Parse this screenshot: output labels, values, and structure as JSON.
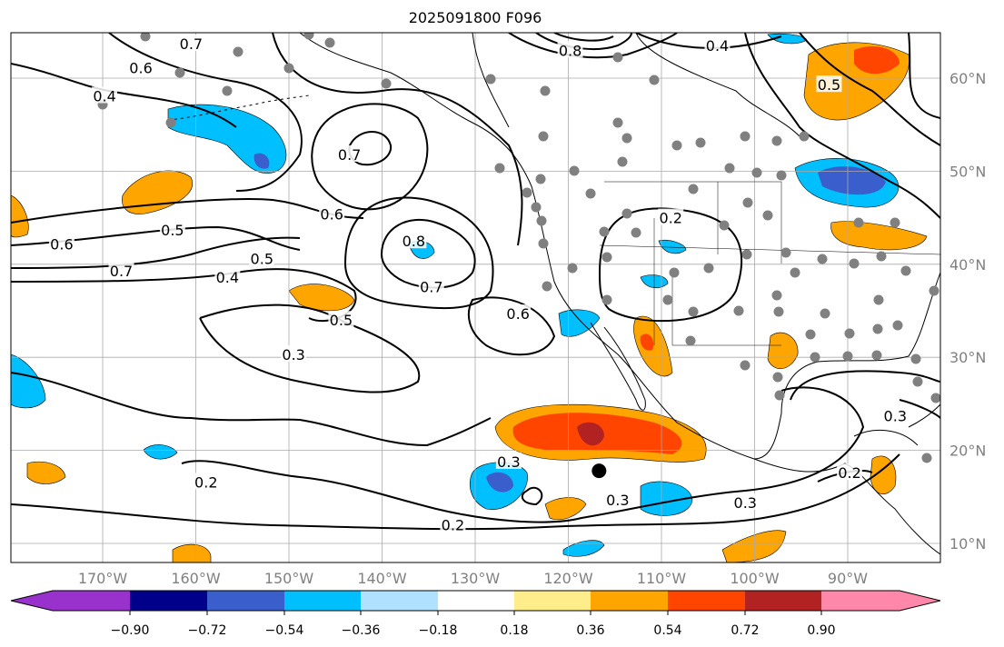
{
  "title": "2025091800 F096",
  "chart_data": {
    "type": "contour-map",
    "title": "2025091800 F096",
    "lon_range": [
      -180,
      -80
    ],
    "lat_range": [
      8,
      65
    ],
    "lon_ticks": [
      {
        "v": -170,
        "label": "170°W"
      },
      {
        "v": -160,
        "label": "160°W"
      },
      {
        "v": -150,
        "label": "150°W"
      },
      {
        "v": -140,
        "label": "140°W"
      },
      {
        "v": -130,
        "label": "130°W"
      },
      {
        "v": -120,
        "label": "120°W"
      },
      {
        "v": -110,
        "label": "110°W"
      },
      {
        "v": -100,
        "label": "100°W"
      },
      {
        "v": -90,
        "label": "90°W"
      }
    ],
    "lat_ticks": [
      {
        "v": 60,
        "label": "60°N"
      },
      {
        "v": 50,
        "label": "50°N"
      },
      {
        "v": 40,
        "label": "40°N"
      },
      {
        "v": 30,
        "label": "30°N"
      },
      {
        "v": 20,
        "label": "20°N"
      },
      {
        "v": 10,
        "label": "10°N"
      }
    ],
    "contour_labels": [
      {
        "text": "0.7",
        "lon": -160.5,
        "lat": 63.7
      },
      {
        "text": "0.6",
        "lon": -165.9,
        "lat": 61.1
      },
      {
        "text": "0.4",
        "lon": -169.8,
        "lat": 58.1
      },
      {
        "text": "0.7",
        "lon": -143.5,
        "lat": 51.8
      },
      {
        "text": "0.6",
        "lon": -145.4,
        "lat": 45.4
      },
      {
        "text": "0.8",
        "lon": -136.6,
        "lat": 42.5
      },
      {
        "text": "0.7",
        "lon": -134.7,
        "lat": 37.6
      },
      {
        "text": "0.5",
        "lon": -162.5,
        "lat": 43.7
      },
      {
        "text": "0.6",
        "lon": -174.4,
        "lat": 42.2
      },
      {
        "text": "0.7",
        "lon": -168.0,
        "lat": 39.3
      },
      {
        "text": "0.4",
        "lon": -156.6,
        "lat": 38.6
      },
      {
        "text": "0.5",
        "lon": -152.9,
        "lat": 40.6
      },
      {
        "text": "0.5",
        "lon": -144.4,
        "lat": 34.0
      },
      {
        "text": "0.3",
        "lon": -149.5,
        "lat": 30.3
      },
      {
        "text": "0.6",
        "lon": -125.4,
        "lat": 34.7
      },
      {
        "text": "0.2",
        "lon": -158.9,
        "lat": 16.6
      },
      {
        "text": "0.2",
        "lon": -132.4,
        "lat": 12.0
      },
      {
        "text": "0.3",
        "lon": -126.4,
        "lat": 18.8
      },
      {
        "text": "0.3",
        "lon": -114.7,
        "lat": 14.7
      },
      {
        "text": "0.3",
        "lon": -101.0,
        "lat": 14.4
      },
      {
        "text": "0.2",
        "lon": -109.0,
        "lat": 45.0
      },
      {
        "text": "0.8",
        "lon": -119.8,
        "lat": 63.0
      },
      {
        "text": "0.4",
        "lon": -104.0,
        "lat": 63.5
      },
      {
        "text": "0.5",
        "lon": -92.0,
        "lat": 59.3
      },
      {
        "text": "0.3",
        "lon": -84.9,
        "lat": 23.7
      },
      {
        "text": "0.2",
        "lon": -89.8,
        "lat": 17.6
      }
    ],
    "marker": {
      "lon": -116.7,
      "lat": 17.8
    },
    "colorbar": {
      "extend": "both",
      "colors": [
        "#9932cc",
        "#00008b",
        "#3a5fcd",
        "#00bfff",
        "#b0e2ff",
        "#ffffff",
        "#ffec8b",
        "#ffa500",
        "#ff4500",
        "#b22222",
        "#ff88aa"
      ],
      "ticks": [
        "−0.90",
        "−0.72",
        "−0.54",
        "−0.36",
        "−0.18",
        "0.18",
        "0.36",
        "0.54",
        "0.72",
        "0.90"
      ]
    }
  }
}
